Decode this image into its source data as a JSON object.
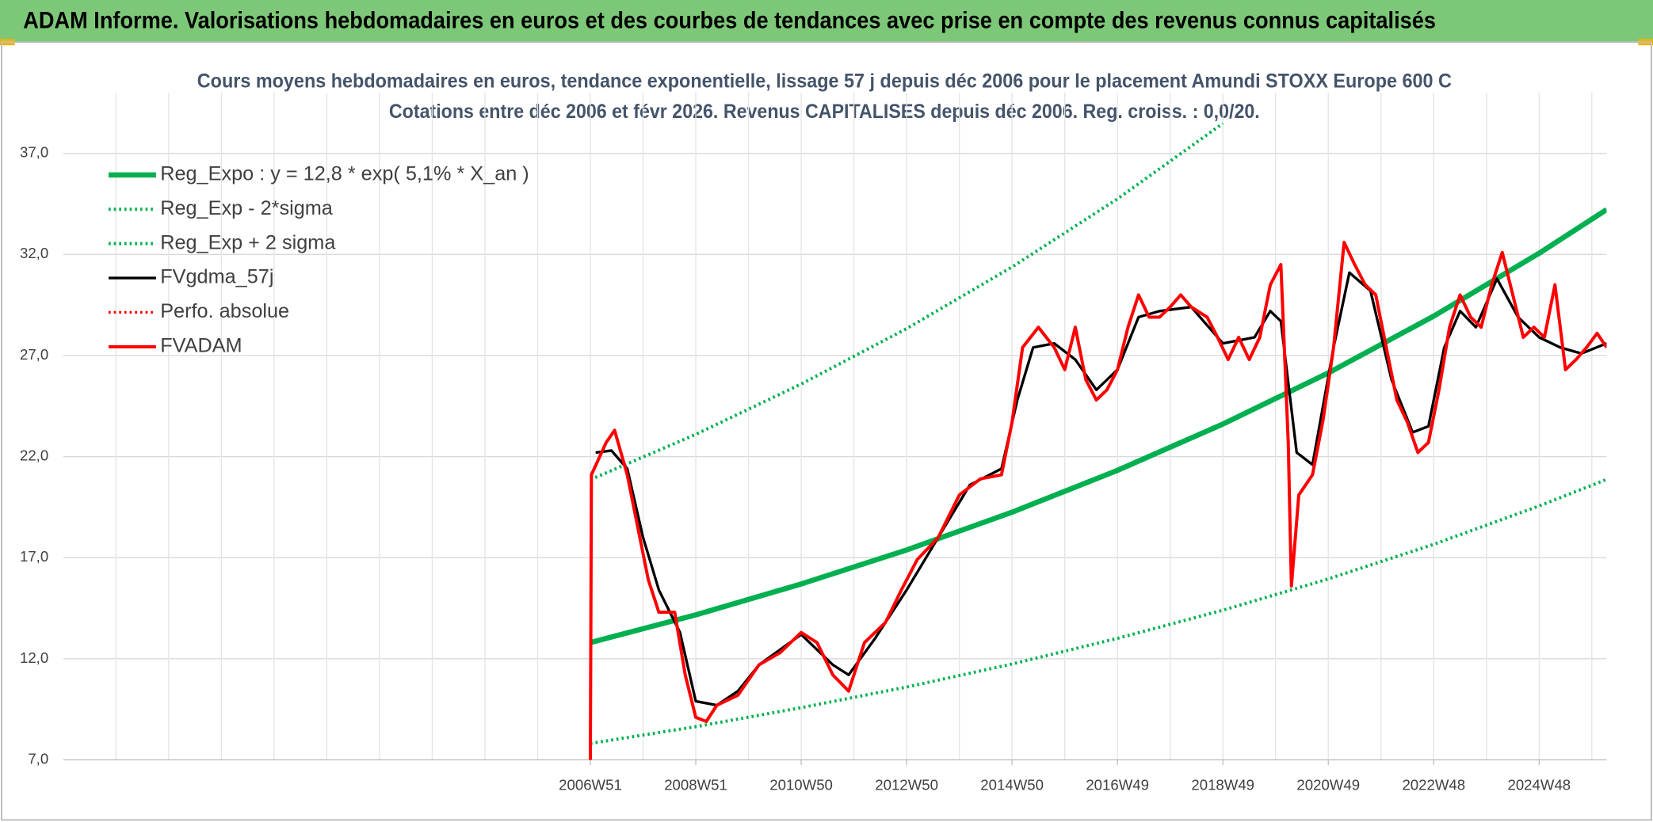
{
  "header": {
    "title": "ADAM Informe. Valorisations hebdomadaires en euros et des courbes de tendances avec prise en compte des revenus connus capitalisés"
  },
  "chart_data": {
    "type": "line",
    "title": "Cours moyens hebdomadaires en euros, tendance exponentielle, lissage 57 j depuis déc 2006 pour le placement Amundi STOXX Europe 600 C",
    "subtitle": "Cotations entre déc 2006 et févr 2026. Revenus CAPITALISES depuis déc 2006. Reg. croiss. : 0,0/20.",
    "xlim": [
      1996.96,
      2026.24
    ],
    "xticks": [
      {
        "value": 2006.96,
        "label": "2006W51"
      },
      {
        "value": 2008.96,
        "label": "2008W51"
      },
      {
        "value": 2010.96,
        "label": "2010W50"
      },
      {
        "value": 2012.96,
        "label": "2012W50"
      },
      {
        "value": 2014.96,
        "label": "2014W50"
      },
      {
        "value": 2016.96,
        "label": "2016W49"
      },
      {
        "value": 2018.96,
        "label": "2018W49"
      },
      {
        "value": 2020.96,
        "label": "2020W49"
      },
      {
        "value": 2022.96,
        "label": "2022W48"
      },
      {
        "value": 2024.96,
        "label": "2024W48"
      }
    ],
    "xgrid": [
      1997.96,
      1998.96,
      1999.96,
      2000.96,
      2001.96,
      2002.96,
      2003.96,
      2004.96,
      2005.96,
      2006.96,
      2007.96,
      2008.96,
      2009.96,
      2010.96,
      2011.96,
      2012.96,
      2013.96,
      2014.96,
      2015.96,
      2016.96,
      2017.96,
      2018.96,
      2019.96,
      2020.96,
      2021.96,
      2022.96,
      2023.96,
      2024.96,
      2025.96
    ],
    "ylim": [
      7,
      40
    ],
    "yticks": [
      {
        "value": 7,
        "label": "7,0"
      },
      {
        "value": 12,
        "label": "12,0"
      },
      {
        "value": 17,
        "label": "17,0"
      },
      {
        "value": 22,
        "label": "22,0"
      },
      {
        "value": 27,
        "label": "27,0"
      },
      {
        "value": 32,
        "label": "32,0"
      },
      {
        "value": 37,
        "label": "37,0"
      }
    ],
    "grid": true,
    "legend": "top-left",
    "series": [
      {
        "name": "Reg_Expo : y = 12,8 * exp( 5,1% *  X_an )",
        "color": "#00b050",
        "style": "solid",
        "width": 5,
        "x": [
          2006.96,
          2008.96,
          2010.96,
          2012.96,
          2014.96,
          2016.96,
          2018.96,
          2020.96,
          2022.96,
          2024.96,
          2026.24
        ],
        "values": [
          12.8,
          14.17,
          15.7,
          17.38,
          19.25,
          21.32,
          23.61,
          26.14,
          28.95,
          32.06,
          34.22
        ]
      },
      {
        "name": "Reg_Exp - 2*sigma",
        "color": "#00b050",
        "style": "dotted",
        "width": 3,
        "x": [
          2006.96,
          2008.96,
          2010.96,
          2012.96,
          2014.96,
          2016.96,
          2018.96,
          2020.96,
          2022.96,
          2024.96,
          2026.24
        ],
        "values": [
          7.81,
          8.64,
          9.58,
          10.6,
          11.74,
          13.01,
          14.4,
          15.95,
          17.66,
          19.56,
          20.87
        ]
      },
      {
        "name": "Reg_Exp + 2 sigma",
        "color": "#00b050",
        "style": "dotted",
        "width": 3,
        "x": [
          2006.96,
          2008.96,
          2010.96,
          2012.96,
          2014.96,
          2016.96,
          2018.96
        ],
        "values": [
          20.86,
          23.1,
          25.59,
          28.33,
          31.38,
          34.75,
          38.48
        ]
      },
      {
        "name": "FVgdma_57j",
        "color": "#000000",
        "style": "solid",
        "width": 2.5,
        "x": [
          2007.06,
          2007.36,
          2007.66,
          2007.96,
          2008.26,
          2008.66,
          2008.96,
          2009.36,
          2009.76,
          2010.16,
          2010.96,
          2011.56,
          2011.86,
          2012.36,
          2012.96,
          2013.56,
          2014.16,
          2014.76,
          2015.06,
          2015.36,
          2015.76,
          2016.16,
          2016.56,
          2016.96,
          2017.36,
          2017.76,
          2018.36,
          2018.96,
          2019.56,
          2019.86,
          2020.06,
          2020.36,
          2020.66,
          2021.06,
          2021.36,
          2021.76,
          2022.16,
          2022.56,
          2022.86,
          2023.16,
          2023.46,
          2023.76,
          2024.16,
          2024.56,
          2024.96,
          2025.36,
          2025.76,
          2026.24
        ],
        "values": [
          22.2,
          22.3,
          21.4,
          18.0,
          15.4,
          13.3,
          9.9,
          9.7,
          10.4,
          11.7,
          13.2,
          11.7,
          11.2,
          13.0,
          15.4,
          18.0,
          20.6,
          21.4,
          24.8,
          27.4,
          27.6,
          26.8,
          25.3,
          26.3,
          28.9,
          29.2,
          29.4,
          27.6,
          27.9,
          29.2,
          28.7,
          22.2,
          21.6,
          27.4,
          31.1,
          30.2,
          25.8,
          23.2,
          23.5,
          27.4,
          29.2,
          28.4,
          30.8,
          28.9,
          27.9,
          27.4,
          27.1,
          27.6
        ]
      },
      {
        "name": "Perfo. absolue",
        "color": "#ff0000",
        "style": "dotted",
        "width": 2.5
      },
      {
        "name": "FVADAM",
        "color": "#ff0000",
        "style": "solid",
        "width": 3,
        "x": [
          2006.96,
          2006.98,
          2007.26,
          2007.42,
          2007.66,
          2007.86,
          2008.06,
          2008.26,
          2008.56,
          2008.76,
          2008.96,
          2009.16,
          2009.36,
          2009.76,
          2010.16,
          2010.56,
          2010.96,
          2011.26,
          2011.56,
          2011.86,
          2012.16,
          2012.56,
          2012.86,
          2013.16,
          2013.56,
          2013.96,
          2014.36,
          2014.76,
          2014.96,
          2015.16,
          2015.46,
          2015.76,
          2015.96,
          2016.16,
          2016.36,
          2016.56,
          2016.76,
          2016.96,
          2017.16,
          2017.36,
          2017.56,
          2017.76,
          2017.96,
          2018.16,
          2018.36,
          2018.66,
          2018.86,
          2019.06,
          2019.26,
          2019.46,
          2019.66,
          2019.86,
          2020.06,
          2020.2,
          2020.26,
          2020.4,
          2020.66,
          2020.86,
          2021.06,
          2021.26,
          2021.46,
          2021.66,
          2021.86,
          2022.06,
          2022.26,
          2022.46,
          2022.66,
          2022.86,
          2023.06,
          2023.26,
          2023.46,
          2023.66,
          2023.86,
          2024.06,
          2024.26,
          2024.46,
          2024.66,
          2024.86,
          2025.06,
          2025.26,
          2025.46,
          2025.66,
          2025.86,
          2026.06,
          2026.24
        ],
        "values": [
          7.0,
          21.1,
          22.7,
          23.3,
          21.1,
          18.5,
          15.9,
          14.3,
          14.3,
          11.2,
          9.1,
          8.9,
          9.7,
          10.2,
          11.7,
          12.3,
          13.3,
          12.8,
          11.2,
          10.4,
          12.8,
          13.8,
          15.4,
          16.9,
          18.0,
          20.1,
          20.9,
          21.1,
          23.7,
          27.4,
          28.4,
          27.4,
          26.3,
          28.4,
          25.8,
          24.8,
          25.3,
          26.3,
          28.4,
          30.0,
          28.9,
          28.9,
          29.4,
          30.0,
          29.4,
          28.9,
          27.9,
          26.8,
          27.9,
          26.8,
          27.9,
          30.5,
          31.5,
          22.7,
          15.6,
          20.1,
          21.1,
          23.8,
          27.4,
          32.6,
          31.5,
          30.5,
          30.0,
          27.4,
          24.8,
          23.7,
          22.2,
          22.7,
          25.3,
          28.4,
          30.0,
          28.9,
          28.4,
          30.5,
          32.1,
          30.0,
          27.9,
          28.4,
          27.9,
          30.5,
          26.3,
          26.8,
          27.4,
          28.1,
          27.4
        ]
      }
    ]
  }
}
